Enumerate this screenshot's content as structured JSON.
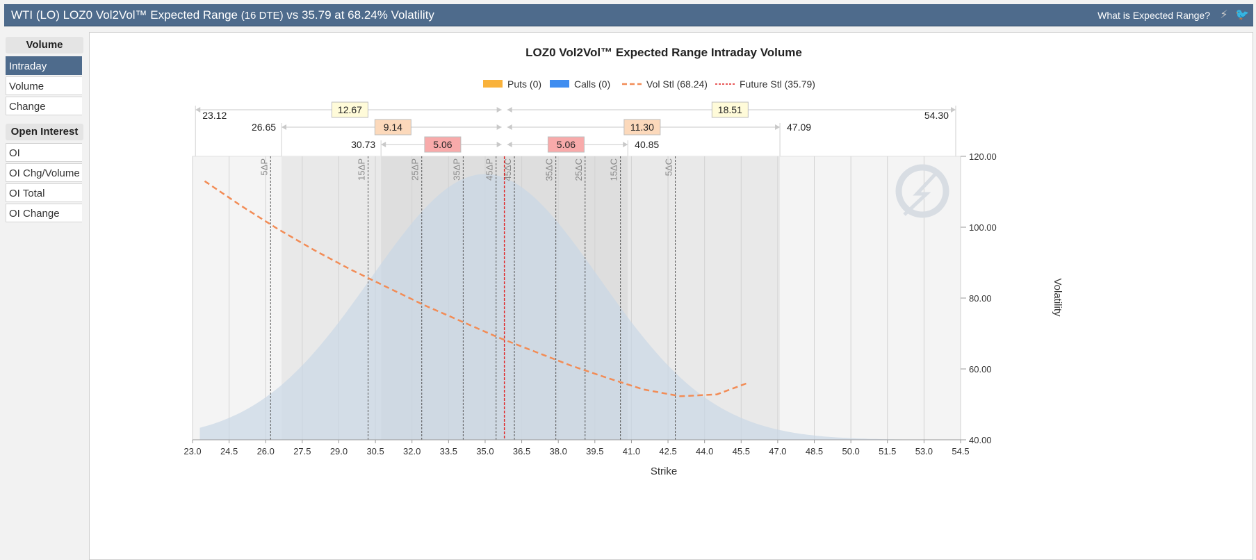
{
  "header": {
    "title_main": "WTI (LO) LOZ0 Vol2Vol™ Expected Range",
    "dte": "(16 DTE)",
    "title_tail": "vs 35.79 at 68.24% Volatility",
    "help_link": "What is Expected Range?",
    "lightning_icon": "⚡",
    "twitter_icon": "🐦"
  },
  "sidebar": {
    "volume_header": "Volume",
    "volume_items": [
      "Intraday",
      "Volume",
      "Change"
    ],
    "oi_header": "Open Interest",
    "oi_items": [
      "OI",
      "OI Chg/Volume",
      "OI Total",
      "OI Change"
    ],
    "active": "Intraday"
  },
  "colors": {
    "header_bg": "#4e6b8c",
    "puts": "#f9b23b",
    "calls": "#3f8df0",
    "vol_line": "#f28c56",
    "future_line": "#e02424",
    "curve_fill": "#c9d7e6",
    "range_outer": "#fffbd9",
    "range_mid": "#fcd9bb",
    "range_inner": "#f8aaaa"
  },
  "chart_data": {
    "type": "line",
    "title": "LOZ0 Vol2Vol™ Expected Range Intraday Volume",
    "xlabel": "Strike",
    "ylabel": "Volatility",
    "xlim": [
      23.0,
      54.5
    ],
    "ylim": [
      40,
      120
    ],
    "x_ticks": [
      "23.0",
      "24.5",
      "26.0",
      "27.5",
      "29.0",
      "30.5",
      "32.0",
      "33.5",
      "35.0",
      "36.5",
      "38.0",
      "39.5",
      "41.0",
      "42.5",
      "44.0",
      "45.5",
      "47.0",
      "48.5",
      "50.0",
      "51.5",
      "53.0",
      "54.5"
    ],
    "y_ticks": [
      "40.00",
      "60.00",
      "80.00",
      "100.00",
      "120.00"
    ],
    "legend": [
      {
        "key": "puts",
        "label": "Puts (0)"
      },
      {
        "key": "calls",
        "label": "Calls (0)"
      },
      {
        "key": "vol",
        "label": "Vol Stl (68.24)"
      },
      {
        "key": "future",
        "label": "Future Stl (35.79)"
      }
    ],
    "puts": [],
    "calls": [],
    "future_settle": 35.79,
    "vol_settle": 68.24,
    "vol_curve": {
      "x": [
        23.5,
        25.0,
        26.5,
        28.0,
        29.5,
        31.0,
        32.5,
        34.0,
        35.5,
        37.0,
        38.5,
        40.0,
        41.5,
        43.0,
        44.5,
        45.75
      ],
      "y": [
        113.0,
        106.0,
        99.5,
        93.5,
        88.0,
        83.0,
        78.0,
        73.5,
        69.0,
        65.0,
        61.0,
        57.5,
        54.2,
        52.3,
        52.8,
        56.0
      ]
    },
    "distribution": {
      "mean": 35.0,
      "sd": 4.7,
      "peak": 115,
      "x_start": 23.3,
      "x_end": 54.3
    },
    "delta_lines": [
      {
        "label": "5ΔP",
        "x": 26.2
      },
      {
        "label": "15ΔP",
        "x": 30.2
      },
      {
        "label": "25ΔP",
        "x": 32.4
      },
      {
        "label": "35ΔP",
        "x": 34.1
      },
      {
        "label": "45ΔP",
        "x": 35.45
      },
      {
        "label": "45ΔC",
        "x": 36.2
      },
      {
        "label": "35ΔC",
        "x": 37.9
      },
      {
        "label": "25ΔC",
        "x": 39.1
      },
      {
        "label": "15ΔC",
        "x": 40.55
      },
      {
        "label": "5ΔC",
        "x": 42.8
      }
    ],
    "ranges": [
      {
        "level": "outer",
        "low": 23.12,
        "high": 54.3,
        "low_label": "23.12",
        "high_label": "54.30",
        "down": "12.67",
        "up": "18.51"
      },
      {
        "level": "mid",
        "low": 26.65,
        "high": 47.09,
        "low_label": "26.65",
        "high_label": "47.09",
        "down": "9.14",
        "up": "11.30"
      },
      {
        "level": "inner",
        "low": 30.73,
        "high": 40.85,
        "low_label": "30.73",
        "high_label": "40.85",
        "down": "5.06",
        "up": "5.06"
      }
    ]
  }
}
